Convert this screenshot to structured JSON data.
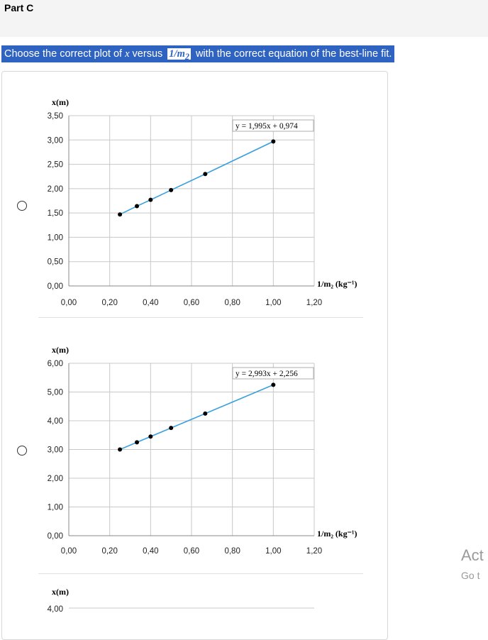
{
  "part_title": "Part C",
  "question": {
    "prefix": "Choose the correct plot of",
    "var_x": "x",
    "middle": "versus",
    "var_inv": "1/m",
    "var_sub": "2",
    "suffix": "with the correct equation of the best-line fit."
  },
  "watermark": {
    "line1": "Act",
    "line2": "Go t"
  },
  "colors": {
    "question_bg": "#2f63c2",
    "fit_line": "#3aa0dd",
    "grid": "#c8c8c8",
    "point": "#000000"
  },
  "options": [
    {
      "y_axis_label": "x(m)",
      "x_axis_label": "1/m₂ (kg⁻¹)",
      "equation": "y = 1,995x + 0,974",
      "y_ticks": [
        "3,50",
        "3,00",
        "2,50",
        "2,00",
        "1,50",
        "1,00",
        "0,50",
        "0,00"
      ],
      "x_ticks": [
        "0,00",
        "0,20",
        "0,40",
        "0,60",
        "0,80",
        "1,00",
        "1,20"
      ]
    },
    {
      "y_axis_label": "x(m)",
      "x_axis_label": "1/m₂ (kg⁻¹)",
      "equation": "y = 2,993x + 2,256",
      "y_ticks": [
        "6,00",
        "5,00",
        "4,00",
        "3,00",
        "2,00",
        "1,00",
        "0,00"
      ],
      "x_ticks": [
        "0,00",
        "0,20",
        "0,40",
        "0,60",
        "0,80",
        "1,00",
        "1,20"
      ]
    },
    {
      "y_axis_label": "x(m)",
      "y_ticks": [
        "4,00"
      ]
    }
  ],
  "chart_data": [
    {
      "type": "scatter",
      "xlabel": "1/m₂ (kg⁻¹)",
      "ylabel": "x(m)",
      "xlim": [
        0,
        1.2
      ],
      "ylim": [
        0,
        3.5
      ],
      "annotation": "y = 1,995x + 0,974",
      "x": [
        0.25,
        0.333,
        0.4,
        0.5,
        0.667,
        1.0
      ],
      "y": [
        1.47,
        1.64,
        1.77,
        1.97,
        2.3,
        2.97
      ],
      "fit": {
        "slope": 1.995,
        "intercept": 0.974
      }
    },
    {
      "type": "scatter",
      "xlabel": "1/m₂ (kg⁻¹)",
      "ylabel": "x(m)",
      "xlim": [
        0,
        1.2
      ],
      "ylim": [
        0,
        6
      ],
      "annotation": "y = 2,993x + 2,256",
      "x": [
        0.25,
        0.333,
        0.4,
        0.5,
        0.667,
        1.0
      ],
      "y": [
        3.0,
        3.25,
        3.45,
        3.75,
        4.25,
        5.25
      ],
      "fit": {
        "slope": 2.993,
        "intercept": 2.256
      }
    }
  ]
}
